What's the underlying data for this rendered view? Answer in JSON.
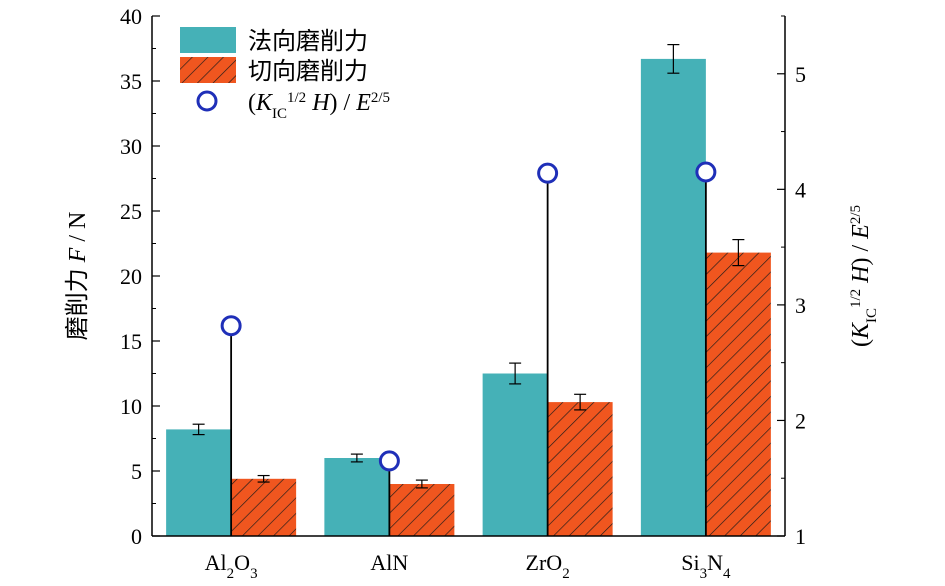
{
  "chart_data": {
    "type": "bar",
    "categories": [
      "Al2O3",
      "AlN",
      "ZrO2",
      "Si3N4"
    ],
    "category_labels": [
      {
        "parts": [
          {
            "t": "Al",
            "s": ""
          },
          {
            "t": "2",
            "s": "sub"
          },
          {
            "t": "O",
            "s": ""
          },
          {
            "t": "3",
            "s": "sub"
          }
        ]
      },
      {
        "parts": [
          {
            "t": "AlN",
            "s": ""
          }
        ]
      },
      {
        "parts": [
          {
            "t": "ZrO",
            "s": ""
          },
          {
            "t": "2",
            "s": "sub"
          }
        ]
      },
      {
        "parts": [
          {
            "t": "Si",
            "s": ""
          },
          {
            "t": "3",
            "s": "sub"
          },
          {
            "t": "N",
            "s": ""
          },
          {
            "t": "4",
            "s": "sub"
          }
        ]
      }
    ],
    "series": [
      {
        "name": "法向磨削力",
        "axis": "left",
        "color": "#45b1b7",
        "pattern": "solid",
        "values": [
          8.2,
          6.0,
          12.5,
          36.7
        ],
        "errors": [
          0.4,
          0.3,
          0.8,
          1.1
        ]
      },
      {
        "name": "切向磨削力",
        "axis": "left",
        "color": "#f0561f",
        "pattern": "hatched",
        "values": [
          4.4,
          4.0,
          10.3,
          21.8
        ],
        "errors": [
          0.25,
          0.3,
          0.6,
          1.0
        ]
      },
      {
        "name": "(KIC1/2 H) / E2/5",
        "axis": "right",
        "marker": "open-circle",
        "color": "#1f2fb8",
        "values": [
          2.82,
          1.65,
          4.14,
          4.15
        ]
      }
    ],
    "legend": {
      "position": "top-left",
      "entries": [
        {
          "series": 0,
          "parts": [
            {
              "t": "法向磨削力",
              "s": ""
            }
          ]
        },
        {
          "series": 1,
          "parts": [
            {
              "t": "切向磨削力",
              "s": ""
            }
          ]
        },
        {
          "series": 2,
          "parts": [
            {
              "t": "(",
              "s": ""
            },
            {
              "t": "K",
              "s": "i"
            },
            {
              "t": "IC",
              "s": "sub"
            },
            {
              "t": "1/2",
              "s": "sup"
            },
            {
              "t": " ",
              "s": ""
            },
            {
              "t": "H",
              "s": "i"
            },
            {
              "t": ") / ",
              "s": ""
            },
            {
              "t": "E",
              "s": "i"
            },
            {
              "t": "2/5",
              "s": "sup"
            }
          ]
        }
      ]
    },
    "y_axis": {
      "ylim": [
        0,
        40
      ],
      "ticks": [
        0,
        5,
        10,
        15,
        20,
        25,
        30,
        35,
        40
      ],
      "label_parts": [
        {
          "t": "磨削力 ",
          "s": ""
        },
        {
          "t": "F",
          "s": "i"
        },
        {
          "t": " / N",
          "s": ""
        }
      ]
    },
    "y2_axis": {
      "ylim": [
        1,
        5.5
      ],
      "ticks": [
        1,
        2,
        3,
        4,
        5
      ],
      "label_parts": [
        {
          "t": "(",
          "s": ""
        },
        {
          "t": "K",
          "s": "i"
        },
        {
          "t": "IC",
          "s": "sub"
        },
        {
          "t": "1/2",
          "s": "sup"
        },
        {
          "t": " ",
          "s": ""
        },
        {
          "t": "H",
          "s": "i"
        },
        {
          "t": ") / ",
          "s": ""
        },
        {
          "t": "E",
          "s": "i"
        },
        {
          "t": "2/5",
          "s": "sup"
        }
      ]
    },
    "grid": false
  }
}
